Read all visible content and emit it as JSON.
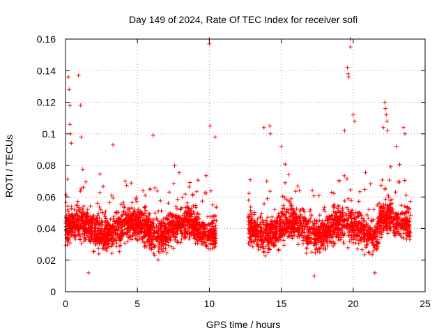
{
  "chart_data": {
    "type": "scatter",
    "title": "Day 149 of 2024, Rate Of TEC Index for receiver sofi",
    "xlabel": "GPS time / hours",
    "ylabel": "ROTI / TECUs",
    "xlim": [
      0,
      25
    ],
    "ylim": [
      0,
      0.16
    ],
    "x_ticks": [
      0,
      5,
      10,
      15,
      20,
      25
    ],
    "x_tick_labels": [
      "0",
      "5",
      "10",
      "15",
      "20",
      "25"
    ],
    "y_ticks": [
      0,
      0.02,
      0.04,
      0.06,
      0.08,
      0.1,
      0.12,
      0.14,
      0.16
    ],
    "y_tick_labels": [
      "0",
      "0.02",
      "0.04",
      "0.06",
      "0.08",
      "0.1",
      "0.12",
      "0.14",
      "0.16"
    ],
    "grid": true,
    "marker": "plus",
    "color": "#ff0000",
    "data_segments": [
      {
        "start": 0.0,
        "end": 10.5
      },
      {
        "start": 12.7,
        "end": 24.0
      }
    ],
    "outliers": [
      {
        "x": 0.2,
        "y": 0.136
      },
      {
        "x": 0.25,
        "y": 0.128
      },
      {
        "x": 0.3,
        "y": 0.118
      },
      {
        "x": 0.3,
        "y": 0.106
      },
      {
        "x": 0.35,
        "y": 0.1
      },
      {
        "x": 0.4,
        "y": 0.094
      },
      {
        "x": 0.9,
        "y": 0.137
      },
      {
        "x": 1.05,
        "y": 0.118
      },
      {
        "x": 1.1,
        "y": 0.098
      },
      {
        "x": 3.3,
        "y": 0.093
      },
      {
        "x": 6.1,
        "y": 0.099
      },
      {
        "x": 10.0,
        "y": 0.16
      },
      {
        "x": 10.0,
        "y": 0.157
      },
      {
        "x": 10.05,
        "y": 0.105
      },
      {
        "x": 10.4,
        "y": 0.098
      },
      {
        "x": 14.2,
        "y": 0.105
      },
      {
        "x": 14.25,
        "y": 0.1
      },
      {
        "x": 13.8,
        "y": 0.104
      },
      {
        "x": 15.0,
        "y": 0.092
      },
      {
        "x": 19.4,
        "y": 0.102
      },
      {
        "x": 19.6,
        "y": 0.142
      },
      {
        "x": 19.65,
        "y": 0.138
      },
      {
        "x": 19.7,
        "y": 0.136
      },
      {
        "x": 19.8,
        "y": 0.16
      },
      {
        "x": 19.8,
        "y": 0.155
      },
      {
        "x": 20.0,
        "y": 0.112
      },
      {
        "x": 20.1,
        "y": 0.108
      },
      {
        "x": 22.2,
        "y": 0.12
      },
      {
        "x": 22.25,
        "y": 0.116
      },
      {
        "x": 22.3,
        "y": 0.112
      },
      {
        "x": 22.35,
        "y": 0.108
      },
      {
        "x": 22.1,
        "y": 0.104
      },
      {
        "x": 22.4,
        "y": 0.102
      },
      {
        "x": 23.0,
        "y": 0.092
      },
      {
        "x": 23.5,
        "y": 0.104
      },
      {
        "x": 23.6,
        "y": 0.1
      },
      {
        "x": 17.3,
        "y": 0.01
      },
      {
        "x": 21.5,
        "y": 0.012
      },
      {
        "x": 1.6,
        "y": 0.012
      }
    ]
  }
}
